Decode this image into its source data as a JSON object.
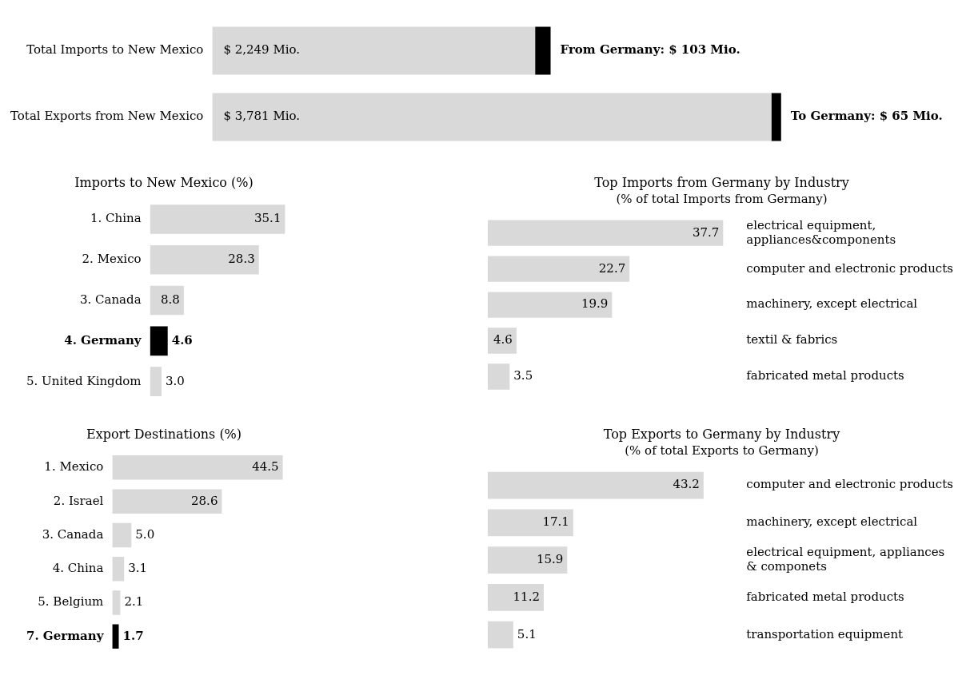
{
  "chart_data": [
    {
      "type": "bar",
      "orientation": "horizontal",
      "stacked": true,
      "categories": [
        "Total Imports to New Mexico",
        "Total Exports from New Mexico"
      ],
      "series": [
        {
          "color": "#d9d9d9",
          "values": [
            2146,
            3716
          ]
        },
        {
          "color": "#000000",
          "values": [
            103,
            65
          ],
          "value_labels": [
            "From Germany: $ 103 Mio.",
            "To Germany: $ 65 Mio."
          ]
        }
      ],
      "totals": [
        "$ 2,249 Mio.",
        "$ 3,781 Mio."
      ]
    },
    {
      "type": "bar",
      "orientation": "horizontal",
      "title": "Imports to New Mexico (%)",
      "categories": [
        "1. China",
        "2. Mexico",
        "3. Canada",
        "4. Germany",
        "5. United Kingdom"
      ],
      "values": [
        35.1,
        28.3,
        8.8,
        4.6,
        3.0
      ],
      "value_labels": [
        "35.1",
        "28.3",
        "8.8",
        "4.6",
        "3.0"
      ],
      "colors": [
        "#d9d9d9",
        "#d9d9d9",
        "#d9d9d9",
        "#000000",
        "#d9d9d9"
      ]
    },
    {
      "type": "bar",
      "orientation": "horizontal",
      "title": "Top Imports from Germany by Industry",
      "subtitle": "(% of total Imports from Germany)",
      "categories": [
        "electrical equipment, appliances&components",
        "computer and electronic products",
        "machinery, except electrical",
        "textil & fabrics",
        "fabricated metal products"
      ],
      "values": [
        37.7,
        22.7,
        19.9,
        4.6,
        3.5
      ],
      "color": "#d9d9d9",
      "data_labels": true
    },
    {
      "type": "bar",
      "orientation": "horizontal",
      "title": "Export Destinations (%)",
      "categories": [
        "1. Mexico",
        "2. Israel",
        "3. Canada",
        "4. China",
        "5. Belgium",
        "7. Germany"
      ],
      "values": [
        44.5,
        28.6,
        5.0,
        3.1,
        2.1,
        1.7
      ],
      "value_labels": [
        "44.5",
        "28.6",
        "5.0",
        "3.1",
        "2.1",
        "1.7"
      ],
      "colors": [
        "#d9d9d9",
        "#d9d9d9",
        "#d9d9d9",
        "#d9d9d9",
        "#d9d9d9",
        "#000000"
      ]
    },
    {
      "type": "bar",
      "orientation": "horizontal",
      "title": "Top Exports to Germany by Industry",
      "subtitle": "(% of total Exports to Germany)",
      "categories": [
        "computer and electronic products",
        "machinery, except electrical",
        "electrical equipment, appliances & componets",
        "fabricated metal products",
        "transportation equipment"
      ],
      "values": [
        43.2,
        17.1,
        15.9,
        11.2,
        5.1
      ],
      "color": "#d9d9d9",
      "data_labels": true
    }
  ]
}
